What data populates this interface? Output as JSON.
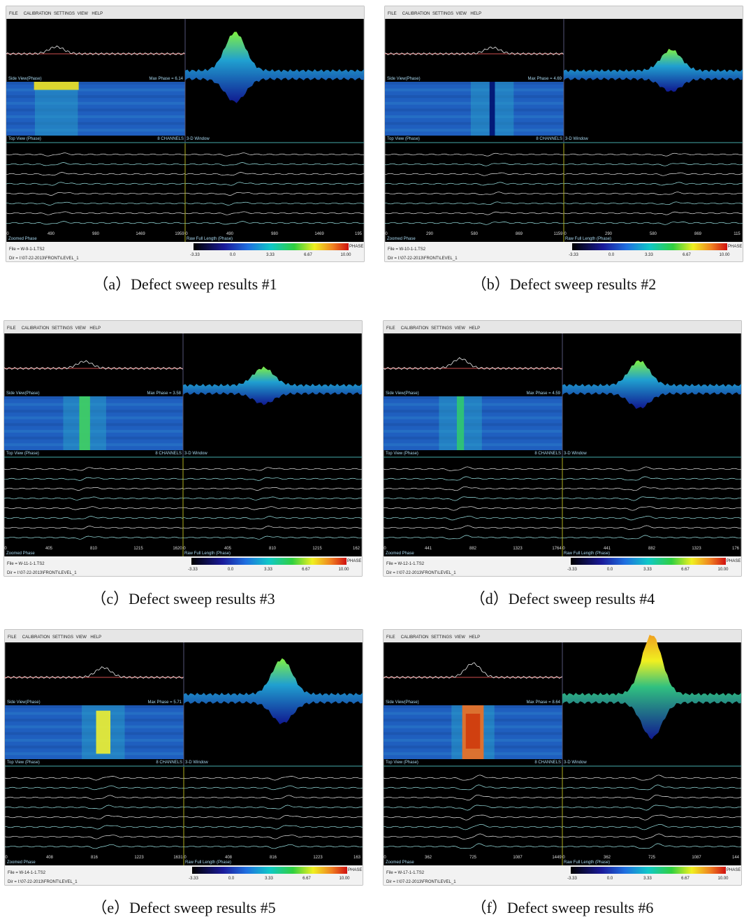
{
  "panels": [
    {
      "menu": [
        "FILE",
        "CALIBRATION",
        "SETTINGS",
        "VIEW",
        "HELP"
      ],
      "side_view_label": "Side View(Phase)",
      "max_phase": "Max Phase = 6.14",
      "top_view_label": "Top View (Phase)",
      "channels_label": "8 CHANNELS",
      "window_label": "3-D Window",
      "zoomed_ticks": [
        "0",
        "490",
        "980",
        "1469",
        "1959"
      ],
      "full_ticks": [
        "0",
        "490",
        "980",
        "1469",
        "195"
      ],
      "zoomed_label": "Zoomed Phase",
      "full_label": "Raw Full Length (Phase)",
      "file": "File = W-9-1-1.TS2",
      "dir": "Dir = I:\\07-22-2013\\FRONT\\LEVEL_1",
      "colorbar_ticks": [
        "-3.33",
        "0.0",
        "3.33",
        "6.67",
        "10.00"
      ],
      "colorbar_label": "PHASE",
      "caption": "（a）Defect sweep results #1"
    },
    {
      "menu": [
        "FILE",
        "CALIBRATION",
        "SETTINGS",
        "VIEW",
        "HELP"
      ],
      "side_view_label": "Side View(Phase)",
      "max_phase": "Max Phase = 4.69",
      "top_view_label": "Top View (Phase)",
      "channels_label": "8 CHANNELS",
      "window_label": "3-D Window",
      "zoomed_ticks": [
        "0",
        "290",
        "580",
        "869",
        "1159"
      ],
      "full_ticks": [
        "0",
        "290",
        "580",
        "869",
        "115"
      ],
      "zoomed_label": "Zoomed Phase",
      "full_label": "Raw Full Length (Phase)",
      "file": "File = W-10-1-1.TS2",
      "dir": "Dir = I:\\07-22-2013\\FRONT\\LEVEL_1",
      "colorbar_ticks": [
        "-3.33",
        "0.0",
        "3.33",
        "6.67",
        "10.00"
      ],
      "colorbar_label": "PHASE",
      "caption": "（b）Defect sweep results #2"
    },
    {
      "menu": [
        "FILE",
        "CALIBRATION",
        "SETTINGS",
        "VIEW",
        "HELP"
      ],
      "side_view_label": "Side View(Phase)",
      "max_phase": "Max Phase = 3.58",
      "top_view_label": "Top View (Phase)",
      "channels_label": "8 CHANNELS",
      "window_label": "3-D Window",
      "zoomed_ticks": [
        "0",
        "405",
        "810",
        "1215",
        "1620"
      ],
      "full_ticks": [
        "0",
        "405",
        "810",
        "1215",
        "162"
      ],
      "zoomed_label": "Zoomed Phase",
      "full_label": "Raw Full Length (Phase)",
      "file": "File = W-11-1-1.TS2",
      "dir": "Dir = I:\\07-22-2013\\FRONT\\LEVEL_1",
      "colorbar_ticks": [
        "-3.33",
        "0.0",
        "3.33",
        "6.67",
        "10.00"
      ],
      "colorbar_label": "PHASE",
      "caption": "（c）Defect sweep results #3"
    },
    {
      "menu": [
        "FILE",
        "CALIBRATION",
        "SETTINGS",
        "VIEW",
        "HELP"
      ],
      "side_view_label": "Side View(Phase)",
      "max_phase": "Max Phase = 4.59",
      "top_view_label": "Top View (Phase)",
      "channels_label": "8 CHANNELS",
      "window_label": "3-D Window",
      "zoomed_ticks": [
        "0",
        "441",
        "882",
        "1323",
        "1764"
      ],
      "full_ticks": [
        "0",
        "441",
        "882",
        "1323",
        "176"
      ],
      "zoomed_label": "Zoomed Phase",
      "full_label": "Raw Full Length (Phase)",
      "file": "File = W-12-1-1.TS2",
      "dir": "Dir = I:\\07-22-2013\\FRONT\\LEVEL_1",
      "colorbar_ticks": [
        "-3.33",
        "0.0",
        "3.33",
        "6.67",
        "10.00"
      ],
      "colorbar_label": "PHASE",
      "caption": "（d）Defect sweep results #4"
    },
    {
      "menu": [
        "FILE",
        "CALIBRATION",
        "SETTINGS",
        "VIEW",
        "HELP"
      ],
      "side_view_label": "Side View(Phase)",
      "max_phase": "Max Phase = 5.71",
      "top_view_label": "Top View (Phase)",
      "channels_label": "8 CHANNELS",
      "window_label": "3-D Window",
      "zoomed_ticks": [
        "0",
        "408",
        "816",
        "1223",
        "1631"
      ],
      "full_ticks": [
        "0",
        "408",
        "816",
        "1223",
        "163"
      ],
      "zoomed_label": "Zoomed Phase",
      "full_label": "Raw Full Length (Phase)",
      "file": "File = W-14-1-1.TS2",
      "dir": "Dir = I:\\07-22-2013\\FRONT\\LEVEL_1",
      "colorbar_ticks": [
        "-3.33",
        "0.0",
        "3.33",
        "6.67",
        "10.00"
      ],
      "colorbar_label": "PHASE",
      "caption": "（e）Defect sweep results #5"
    },
    {
      "menu": [
        "FILE",
        "CALIBRATION",
        "SETTINGS",
        "VIEW",
        "HELP"
      ],
      "side_view_label": "Side View(Phase)",
      "max_phase": "Max Phase = 8.64",
      "top_view_label": "Top View (Phase)",
      "channels_label": "8 CHANNELS",
      "window_label": "3-D Window",
      "zoomed_ticks": [
        "0",
        "362",
        "725",
        "1087",
        "1449"
      ],
      "full_ticks": [
        "0",
        "362",
        "725",
        "1087",
        "144"
      ],
      "zoomed_label": "Zoomed Phase",
      "full_label": "Raw Full Length (Phase)",
      "file": "File = W-17-1-1.TS2",
      "dir": "Dir = I:\\07-22-2013\\FRONT\\LEVEL_1",
      "colorbar_ticks": [
        "-3.33",
        "0.0",
        "3.33",
        "6.67",
        "10.00"
      ],
      "colorbar_label": "PHASE",
      "caption": "（f）Defect sweep results #6"
    }
  ]
}
